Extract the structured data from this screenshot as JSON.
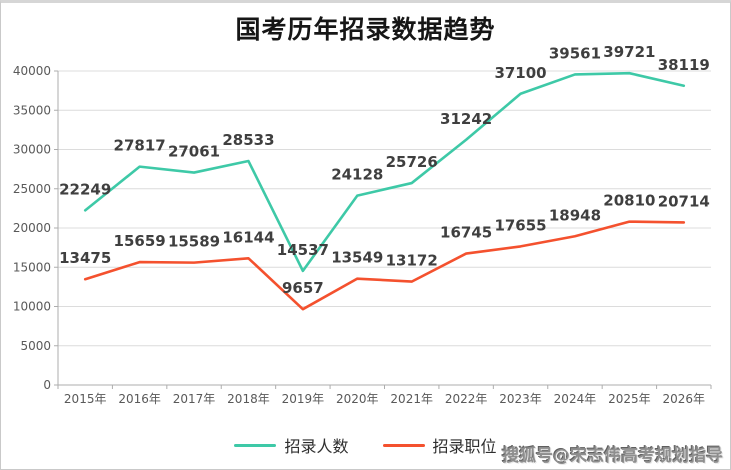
{
  "chart_data": {
    "type": "line",
    "title": "国考历年招录数据趋势",
    "categories": [
      "2015年",
      "2016年",
      "2017年",
      "2018年",
      "2019年",
      "2020年",
      "2021年",
      "2022年",
      "2023年",
      "2024年",
      "2025年",
      "2026年"
    ],
    "series": [
      {
        "name": "招录人数",
        "color": "#3EC9A7",
        "values": [
          22249,
          27817,
          27061,
          28533,
          14537,
          24128,
          25726,
          31242,
          37100,
          39561,
          39721,
          38119
        ]
      },
      {
        "name": "招录职位",
        "color": "#F4512E",
        "values": [
          13475,
          15659,
          15589,
          16144,
          9657,
          13549,
          13172,
          16745,
          17655,
          18948,
          20810,
          20714
        ]
      }
    ],
    "xlabel": "",
    "ylabel": "",
    "ylim": [
      0,
      40000
    ],
    "ytick_interval": 5000,
    "grid": true,
    "legend_position": "bottom",
    "colors": {
      "grid": "#DCDCDC",
      "axis": "#ADADAD",
      "tick_label": "#595959",
      "data_label": "#3F3F3F"
    }
  },
  "watermark": "搜狐号@宋志伟高考规划指导"
}
